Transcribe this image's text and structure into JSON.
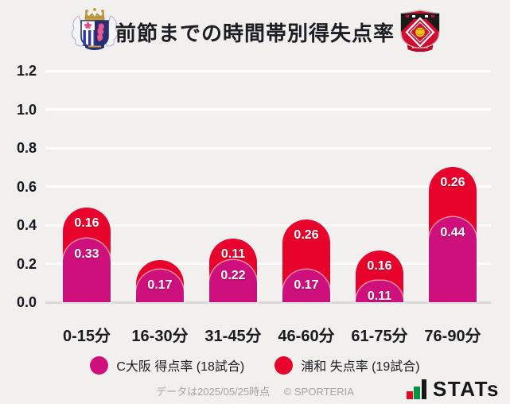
{
  "chart_data": {
    "type": "bar",
    "subtype": "stacked-rounded-columns",
    "title": "前節までの時間帯別得失点率",
    "categories": [
      "0-15分",
      "16-30分",
      "31-45分",
      "46-60分",
      "61-75分",
      "76-90分"
    ],
    "series": [
      {
        "name": "C大阪 得点率 (18試合)",
        "color": "#ce107c",
        "values": [
          0.33,
          0.17,
          0.22,
          0.17,
          0.11,
          0.44
        ],
        "labels": [
          "0.33",
          "0.17",
          "0.22",
          "0.17",
          "0.11",
          "0.44"
        ]
      },
      {
        "name": "浦和 失点率 (19試合)",
        "color": "#e8032c",
        "values": [
          0.16,
          0.05,
          0.11,
          0.26,
          0.16,
          0.26
        ],
        "labels": [
          "0.16",
          "",
          "0.11",
          "0.26",
          "0.16",
          "0.26"
        ]
      }
    ],
    "stacking": "sum",
    "ylim": [
      0,
      1.2
    ],
    "yticks": [
      "0.0",
      "0.2",
      "0.4",
      "0.6",
      "0.8",
      "1.0",
      "1.2"
    ],
    "grid": true,
    "grid_color": "#ffffff",
    "background_color": "#f1f0ef",
    "legend_position": "bottom"
  },
  "footer": {
    "note": "データは2025/05/25時点",
    "copyright": "© SPORTERIA",
    "brand": "STATs"
  }
}
